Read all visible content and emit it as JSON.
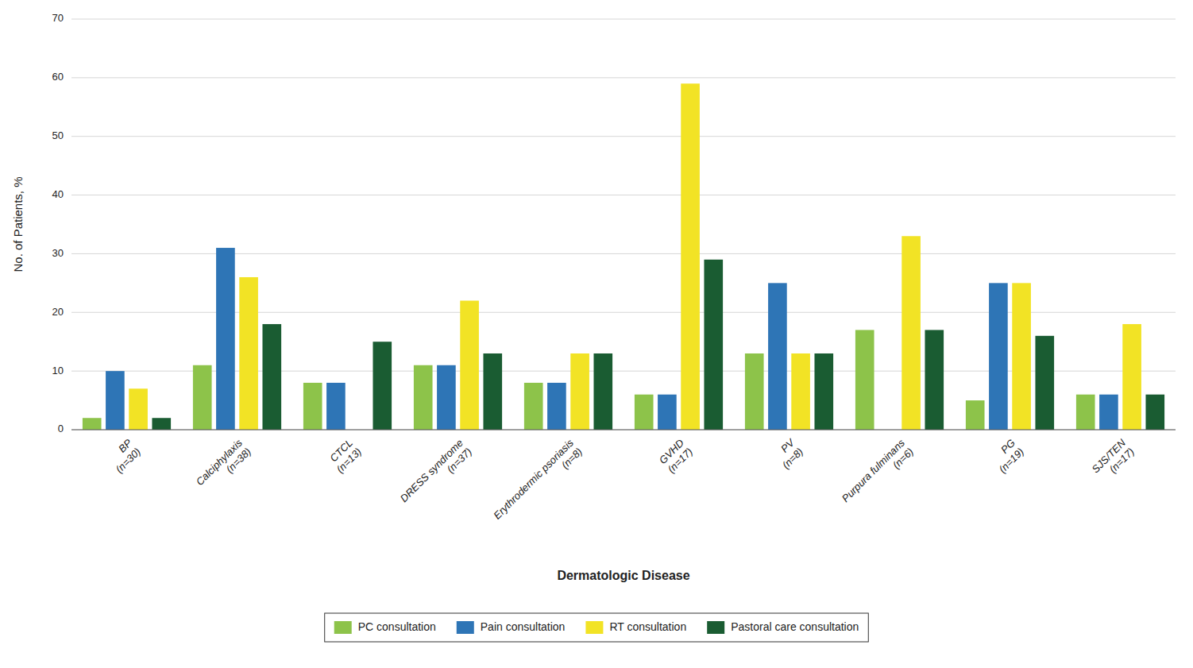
{
  "chart_data": {
    "type": "bar",
    "categories": [
      "BP\n(n=30)",
      "Calciphylaxis\n(n=38)",
      "CTCL\n(n=13)",
      "DRESS syndrome\n(n=37)",
      "Erythrodermic psoriasis\n(n=8)",
      "GVHD\n(n=17)",
      "PV\n(n=8)",
      "Purpura fulminans\n(n=6)",
      "PG\n(n=19)",
      "SJS/TEN\n(n=17)"
    ],
    "series": [
      {
        "name": "PC consultation",
        "color": "#8dc34a",
        "values": [
          2,
          11,
          8,
          11,
          8,
          6,
          13,
          17,
          5,
          6
        ]
      },
      {
        "name": "Pain consultation",
        "color": "#2e75b6",
        "values": [
          10,
          31,
          8,
          11,
          8,
          6,
          25,
          0,
          25,
          6
        ]
      },
      {
        "name": "RT consultation",
        "color": "#f2e325",
        "values": [
          7,
          26,
          0,
          22,
          13,
          59,
          13,
          33,
          25,
          18
        ]
      },
      {
        "name": "Pastoral care consultation",
        "color": "#1a5c32",
        "values": [
          2,
          18,
          15,
          13,
          13,
          29,
          13,
          17,
          16,
          6
        ]
      }
    ],
    "xlabel": "Dermatologic Disease",
    "ylabel": "No. of Patients, %",
    "ylim": [
      0,
      70
    ],
    "yticks": [
      0,
      10,
      20,
      30,
      40,
      50,
      60,
      70
    ],
    "grid": true,
    "legend": "bottom"
  }
}
